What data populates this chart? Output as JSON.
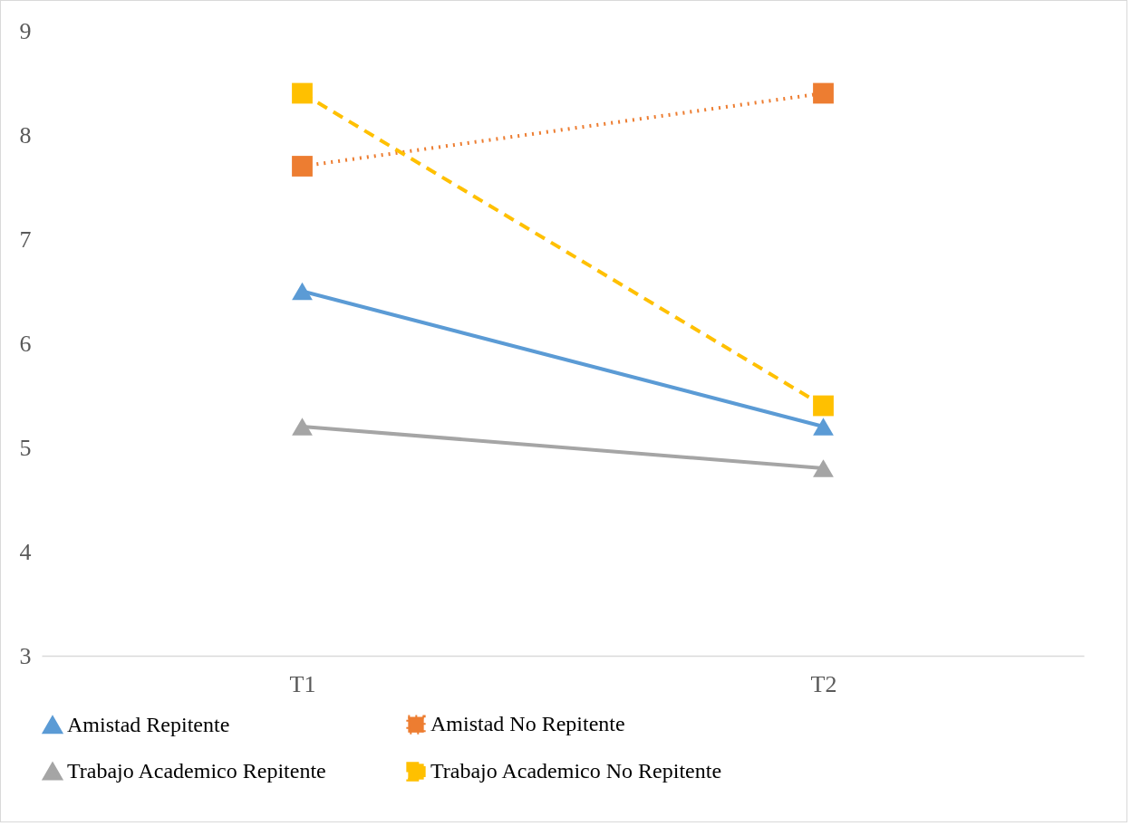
{
  "chart_data": {
    "type": "line",
    "categories": [
      "T1",
      "T2"
    ],
    "ylim": [
      3,
      9
    ],
    "yticks": [
      3,
      4,
      5,
      6,
      7,
      8,
      9
    ],
    "grid": false,
    "legend": "bottom",
    "series": [
      {
        "name": "Amistad Repitente",
        "color": "#5b9bd5",
        "values": [
          6.5,
          5.2
        ],
        "marker": "triangle",
        "line_style": "solid"
      },
      {
        "name": "Amistad No Repitente",
        "color": "#ed7d31",
        "values": [
          7.7,
          8.4
        ],
        "marker": "square",
        "line_style": "dotted"
      },
      {
        "name": "Trabajo Academico Repitente",
        "color": "#a5a5a5",
        "values": [
          5.2,
          4.8
        ],
        "marker": "triangle",
        "line_style": "solid"
      },
      {
        "name": "Trabajo Academico No Repitente",
        "color": "#ffc000",
        "values": [
          8.4,
          5.4
        ],
        "marker": "square",
        "line_style": "dashed"
      }
    ]
  }
}
